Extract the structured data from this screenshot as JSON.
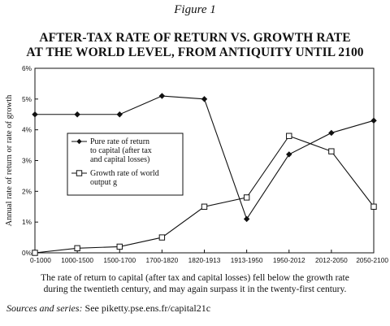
{
  "figure_label": "Figure 1",
  "caption": [
    "The rate of return to capital (after tax and capital losses) fell below the growth rate",
    "during the twentieth century, and may again surpass it in the twenty-first century."
  ],
  "sources": {
    "label": "Sources and series:",
    "text": " See piketty.pse.ens.fr/capital21c"
  },
  "chart_data": {
    "type": "line",
    "title": [
      "AFTER-TAX RATE OF RETURN VS. GROWTH RATE",
      "AT THE WORLD LEVEL, FROM ANTIQUITY UNTIL 2100"
    ],
    "ylabel": "Annual rate of return or rate of growth",
    "xlabel": "",
    "categories": [
      "0-1000",
      "1000-1500",
      "1500-1700",
      "1700-1820",
      "1820-1913",
      "1913-1950",
      "1950-2012",
      "2012-2050",
      "2050-2100"
    ],
    "ylim": [
      0,
      6
    ],
    "yticks": [
      "0%",
      "1%",
      "2%",
      "3%",
      "4%",
      "5%",
      "6%"
    ],
    "grid": false,
    "legend_position": "left-center",
    "series": [
      {
        "name": "Pure rate of return to capital (after tax and capital losses)",
        "legend_lines": [
          "Pure rate of return",
          "to capital (after tax",
          "and capital losses)"
        ],
        "marker": "filled-diamond",
        "values": [
          4.5,
          4.5,
          4.5,
          5.1,
          5.0,
          1.1,
          3.2,
          3.9,
          4.3
        ]
      },
      {
        "name": "Growth rate of world output g",
        "legend_lines": [
          "Growth rate of world",
          "output g"
        ],
        "marker": "open-square",
        "values": [
          0.0,
          0.15,
          0.2,
          0.5,
          1.5,
          1.8,
          3.8,
          3.3,
          1.5
        ]
      }
    ]
  }
}
